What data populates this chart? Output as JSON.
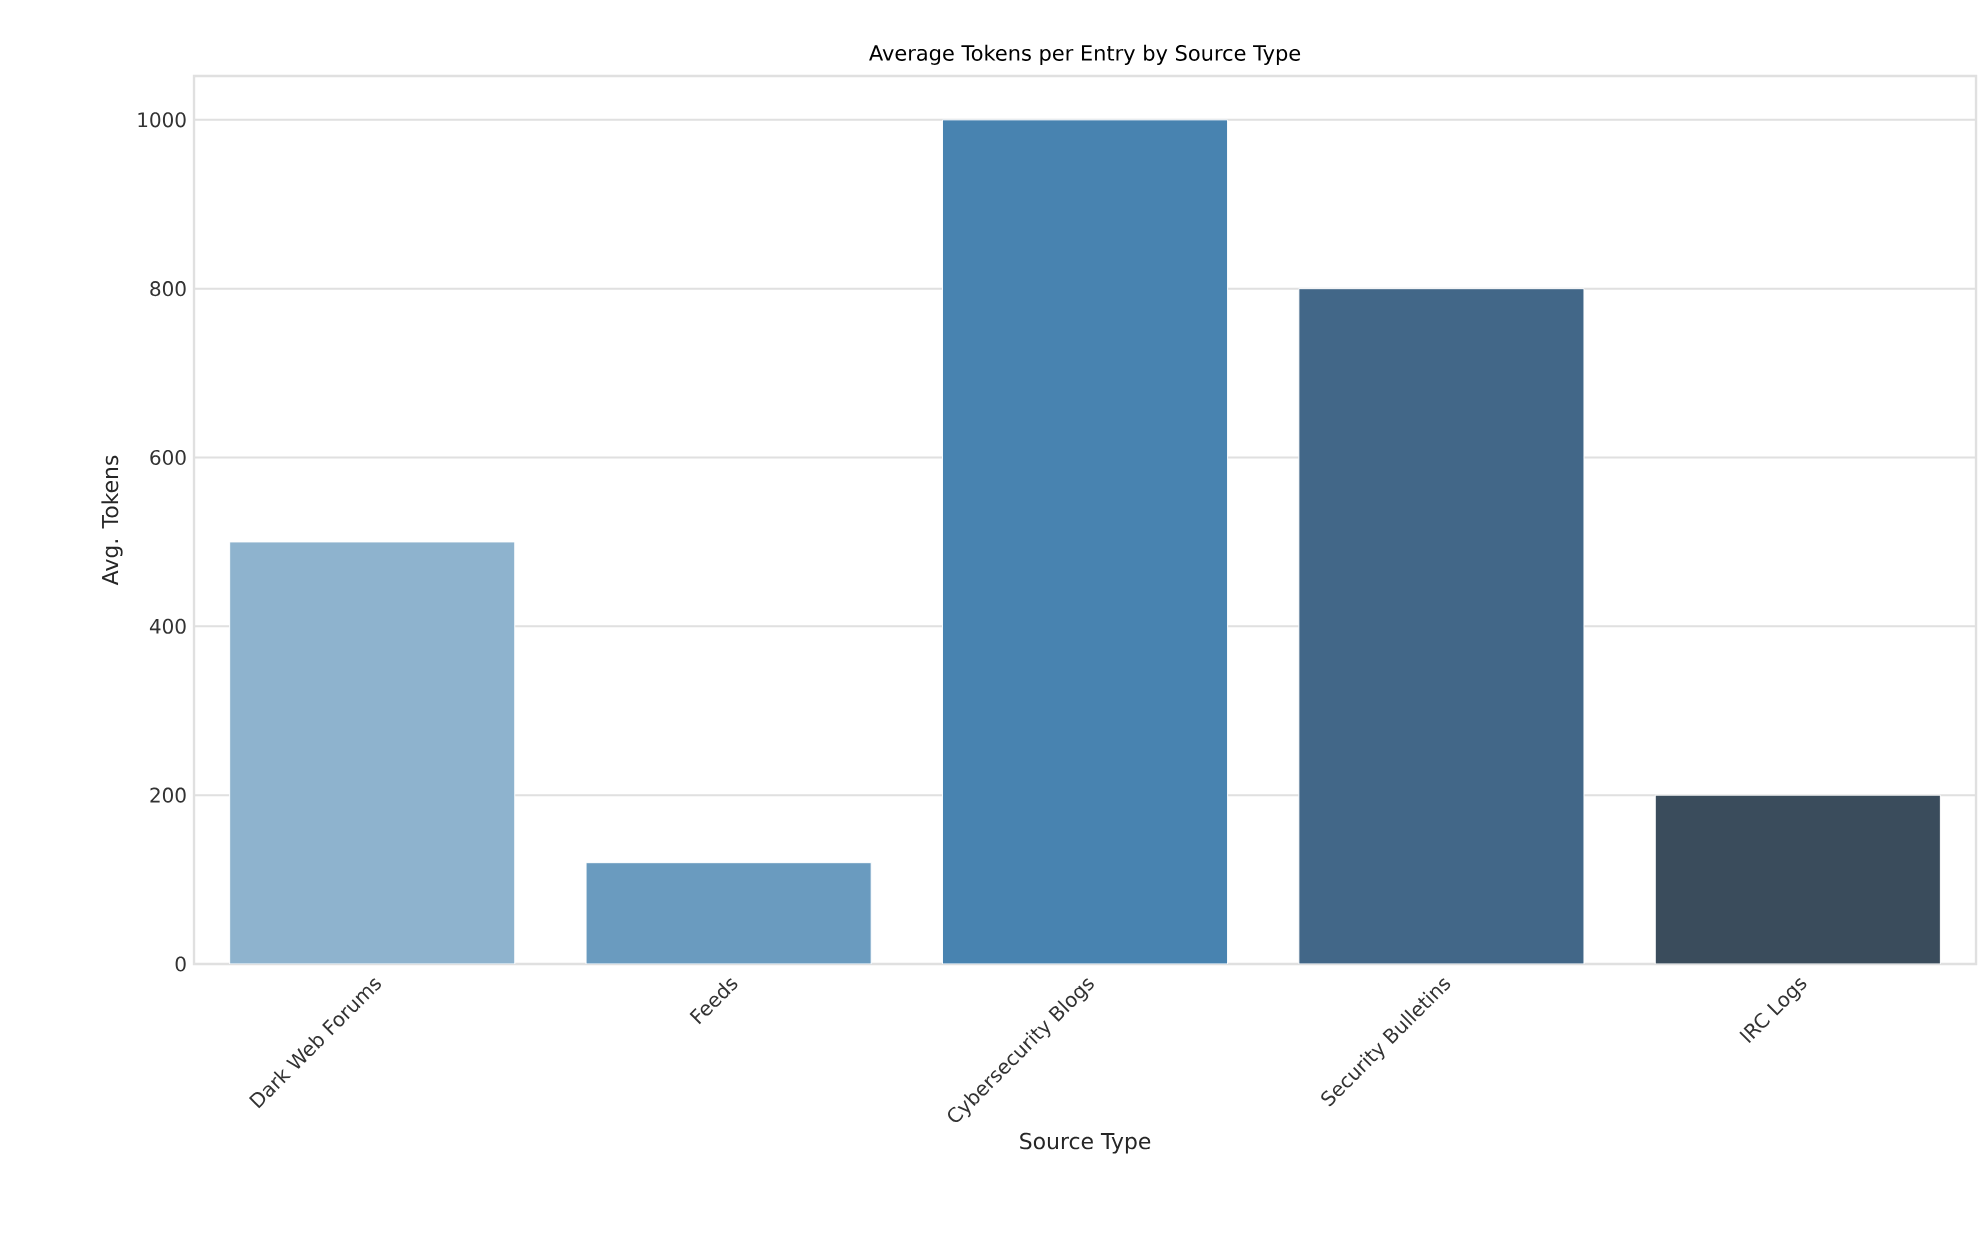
{
  "chart_data": {
    "type": "bar",
    "title": "Average Tokens per Entry by Source Type",
    "xlabel": "Source Type",
    "ylabel": "Avg. Tokens",
    "categories": [
      "Dark Web Forums",
      "Feeds",
      "Cybersecurity Blogs",
      "Security Bulletins",
      "IRC Logs"
    ],
    "values": [
      500,
      120,
      1000,
      800,
      200
    ],
    "colors": [
      "#8eb3ce",
      "#6a9bbf",
      "#4883b0",
      "#426788",
      "#3a4c5c"
    ],
    "ylim": [
      0,
      1052
    ],
    "yticks": [
      0,
      200,
      400,
      600,
      800,
      1000
    ],
    "grid": "y"
  }
}
